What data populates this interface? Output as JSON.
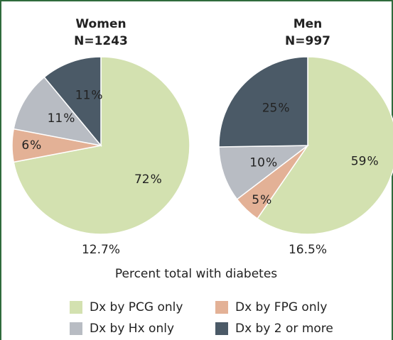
{
  "chart_data": [
    {
      "type": "pie",
      "title": "Women",
      "subtitle": "N=1243",
      "categories": [
        "Dx by PCG only",
        "Dx by FPG only",
        "Dx by Hx only",
        "Dx by 2 or more"
      ],
      "values": [
        72,
        6,
        11,
        11
      ],
      "colors": [
        "#d3e1b0",
        "#e3b196",
        "#b8bcc3",
        "#4b5a67"
      ],
      "annotation": "12.7%"
    },
    {
      "type": "pie",
      "title": "Men",
      "subtitle": "N=997",
      "categories": [
        "Dx by PCG only",
        "Dx by FPG only",
        "Dx by Hx only",
        "Dx by 2 or more"
      ],
      "values": [
        59,
        5,
        10,
        25
      ],
      "colors": [
        "#d3e1b0",
        "#e3b196",
        "#b8bcc3",
        "#4b5a67"
      ],
      "annotation": "16.5%"
    }
  ],
  "caption": "Percent total with diabetes"
}
